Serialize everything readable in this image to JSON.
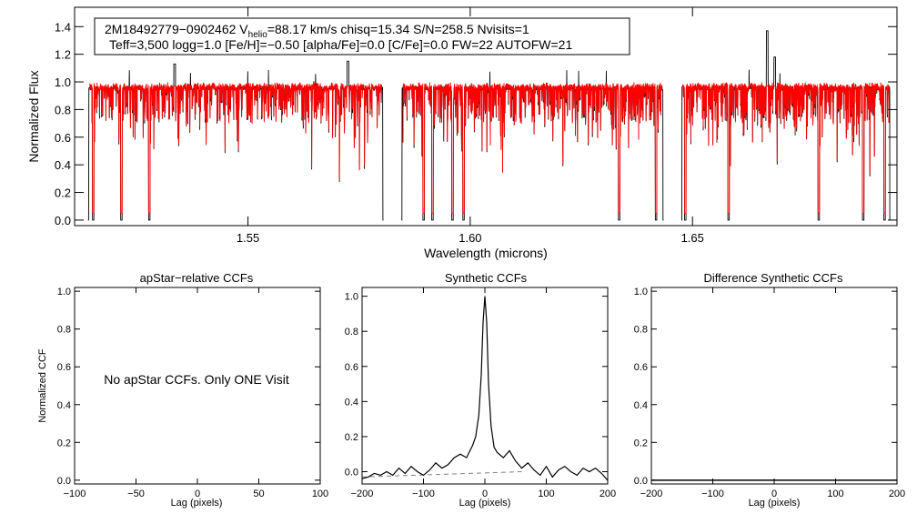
{
  "header": {
    "line1_id": "2M18492779−0902462  V",
    "line1_sub": "helio",
    "line1_rest": "=88.17 km/s  chisq=15.34  S/N=258.5  Nvisits=1",
    "line2": "Teff=3,500 logg=1.0 [Fe/H]=−0.50 [alpha/Fe]=0.0 [C/Fe]=0.0 FW=22 AUTOFW=21"
  },
  "colors": {
    "observed": "#000000",
    "model": "#ff0000",
    "zero_line": "#808080"
  },
  "chart_data": [
    {
      "id": "spectrum",
      "type": "line",
      "title": "",
      "xlabel": "Wavelength (microns)",
      "ylabel": "Normalized Flux",
      "xlim": [
        1.511,
        1.696
      ],
      "ylim": [
        -0.04,
        1.54
      ],
      "xticks": [
        1.55,
        1.6,
        1.65
      ],
      "xtick_labels": [
        "1.55",
        "1.60",
        "1.65"
      ],
      "yticks": [
        0.0,
        0.2,
        0.4,
        0.6,
        0.8,
        1.0,
        1.2,
        1.4
      ],
      "ytick_labels": [
        "0.0",
        "0.2",
        "0.4",
        "0.6",
        "0.8",
        "1.0",
        "1.2",
        "1.4"
      ],
      "chip_ranges": [
        [
          1.514,
          1.5805
        ],
        [
          1.5845,
          1.6435
        ],
        [
          1.6475,
          1.6945
        ]
      ],
      "series": [
        {
          "name": "Observed spectrum",
          "color": "#000000"
        },
        {
          "name": "Best-fit model",
          "color": "#ff0000"
        }
      ]
    },
    {
      "id": "apstar-ccf",
      "type": "line",
      "title": "apStar−relative CCFs",
      "xlabel": "Lag (pixels)",
      "ylabel": "Normalized CCF",
      "xlim": [
        -100,
        100
      ],
      "ylim": [
        -0.02,
        1.02
      ],
      "xticks": [
        -100,
        -50,
        0,
        50,
        100
      ],
      "xtick_labels": [
        "−100",
        "−50",
        "0",
        "50",
        "100"
      ],
      "yticks": [
        0.0,
        0.2,
        0.4,
        0.6,
        0.8,
        1.0
      ],
      "ytick_labels": [
        "0.0",
        "0.2",
        "0.4",
        "0.6",
        "0.8",
        "1.0"
      ],
      "annotation": "No apStar CCFs.  Only ONE Visit",
      "series": []
    },
    {
      "id": "synthetic-ccf",
      "type": "line",
      "title": "Synthetic CCFs",
      "xlabel": "Lag (pixels)",
      "ylabel": "",
      "xlim": [
        -200,
        200
      ],
      "ylim": [
        -0.07,
        1.05
      ],
      "xticks": [
        -200,
        -100,
        0,
        100,
        200
      ],
      "xtick_labels": [
        "−200",
        "−100",
        "0",
        "100",
        "200"
      ],
      "yticks": [
        0.0,
        0.2,
        0.4,
        0.6,
        0.8,
        1.0
      ],
      "ytick_labels": [
        "0.0",
        "0.2",
        "0.4",
        "0.6",
        "0.8",
        "1.0"
      ],
      "peak": {
        "lag": 0,
        "value": 1.0
      },
      "zero_line": [
        [
          -200,
          -0.03
        ],
        [
          60,
          0.0
        ]
      ],
      "series": [
        {
          "name": "Synthetic CCF",
          "color": "#000000",
          "x": [
            -200,
            -190,
            -180,
            -170,
            -160,
            -150,
            -140,
            -130,
            -120,
            -110,
            -100,
            -90,
            -80,
            -70,
            -60,
            -50,
            -40,
            -30,
            -20,
            -15,
            -10,
            -6,
            -3,
            0,
            3,
            6,
            10,
            15,
            20,
            30,
            40,
            50,
            60,
            70,
            80,
            90,
            100,
            110,
            120,
            130,
            140,
            150,
            160,
            170,
            180,
            190,
            200
          ],
          "y": [
            -0.04,
            -0.03,
            -0.01,
            -0.02,
            0.0,
            -0.02,
            0.02,
            -0.01,
            0.03,
            0.0,
            -0.02,
            0.01,
            0.05,
            0.02,
            0.04,
            0.08,
            0.1,
            0.08,
            0.15,
            0.2,
            0.32,
            0.55,
            0.85,
            1.0,
            0.85,
            0.5,
            0.26,
            0.14,
            0.11,
            0.08,
            0.12,
            0.06,
            0.02,
            0.05,
            0.01,
            -0.02,
            0.03,
            -0.03,
            0.01,
            0.03,
            0.0,
            -0.02,
            0.02,
            0.0,
            0.02,
            -0.01,
            -0.05
          ]
        }
      ]
    },
    {
      "id": "difference-ccf",
      "type": "line",
      "title": "Difference Synthetic CCFs",
      "xlabel": "Lag (pixels)",
      "ylabel": "",
      "xlim": [
        -200,
        200
      ],
      "ylim": [
        -0.02,
        1.02
      ],
      "xticks": [
        -200,
        -100,
        0,
        100,
        200
      ],
      "xtick_labels": [
        "−200",
        "−100",
        "0",
        "100",
        "200"
      ],
      "yticks": [
        0.0,
        0.2,
        0.4,
        0.6,
        0.8,
        1.0
      ],
      "ytick_labels": [
        "0.0",
        "0.2",
        "0.4",
        "0.6",
        "0.8",
        "1.0"
      ],
      "series": [
        {
          "name": "Difference CCF",
          "color": "#000000",
          "x": [
            -200,
            200
          ],
          "y": [
            0.0,
            0.0
          ]
        }
      ]
    }
  ]
}
